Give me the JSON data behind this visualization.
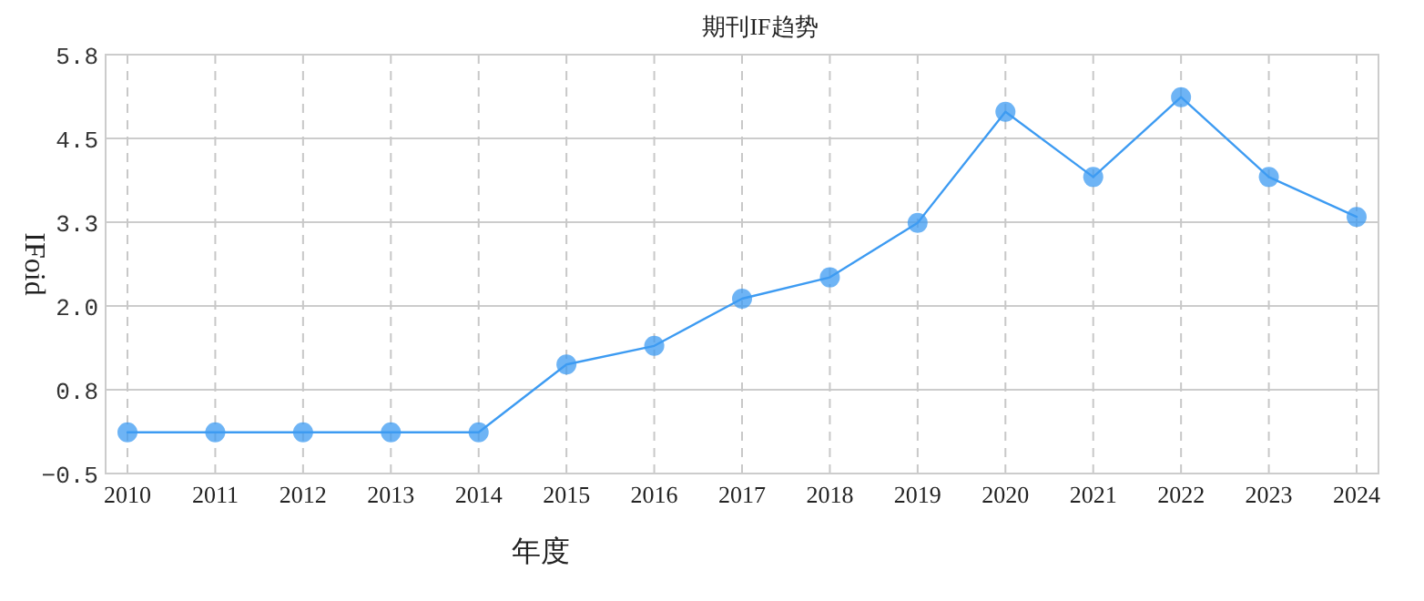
{
  "chart_data": {
    "type": "line",
    "title": "期刊IF趋势",
    "xlabel": "年度",
    "ylabel": "IFoid",
    "categories": [
      "2010",
      "2011",
      "2012",
      "2013",
      "2014",
      "2015",
      "2016",
      "2017",
      "2018",
      "2019",
      "2020",
      "2021",
      "2022",
      "2023",
      "2024"
    ],
    "series": [
      {
        "color": "#3d9bf2",
        "values": [
          0.12,
          0.12,
          0.12,
          0.12,
          0.12,
          1.14,
          1.42,
          2.13,
          2.45,
          3.27,
          4.94,
          3.96,
          5.16,
          3.96,
          3.36
        ]
      }
    ],
    "ylim": [
      -0.5,
      5.8
    ],
    "yticks": [
      -0.5,
      {
        "value": 0.76,
        "label": "0.8"
      },
      {
        "value": 2.02,
        "label": "2.0"
      },
      {
        "value": 3.28,
        "label": "3.3"
      },
      {
        "value": 4.54,
        "label": "4.5"
      },
      5.8
    ],
    "grid": true,
    "marker": "circle",
    "line_style": "solid"
  }
}
